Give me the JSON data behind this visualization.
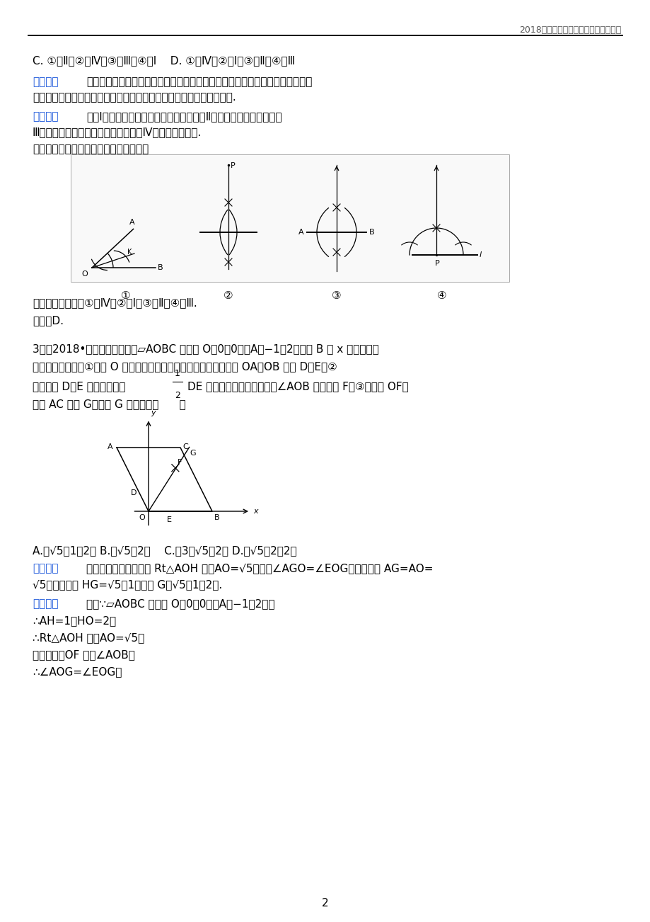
{
  "page_bg": "#ffffff",
  "header_text": "2018年中考数学试题分类汇编考点解析",
  "page_num": "2",
  "line1_c": "C. ①－Ⅱ，②－Ⅳ，③－Ⅲ，④－Ⅰ    D. ①－Ⅳ，②－Ⅰ，③－Ⅱ，④－Ⅲ",
  "fenxi_text": "分别利用过直线外一点作这条直线的垂线作法以及线段垂直平分线的作法和过直",
  "fenxi_text2": "线上一点作这条直线的垂线、角平分线的作法分别得出符合题意的答案.",
  "jiejie_text": "解：Ⅰ、过直线外一点作这条直线的垂线；Ⅱ、作线段的垂直平分线；",
  "jiejie_text2": "Ⅲ、过直线上一点作这条直线的垂线；Ⅳ、作角的平分线.",
  "note1": "如图是按上述要求排乱顺序的尺规作图：",
  "result_text": "则正确的配对是：①－Ⅳ，②－Ⅰ，③－Ⅱ，④－Ⅲ.",
  "choice_text": "故选：D.",
  "q3_head": "3．（2018•河南）如图，已知▱AOBC 的顶点 O（0，0），A（−1，2），点 B 在 x 轴正半轴上",
  "q3_line1": "按以下步骤作图：①以点 O 为圆心，适当长度为半径作弧，分别交边 OA，OB 于点 D，E；②",
  "q3_line2a": "分别以点 D，E 为圆心，大于",
  "q3_line2b": "DE 的长为半径作弧，两弧在∠AOB 内交于点 F；③作射线 OF，",
  "q3_line3": "交边 AC 于点 G，则点 G 的坐标为（      ）",
  "choices_line": "A.（√5－1，2） B.（√5，2）    C.（3－√5，2） D.（√5－2，2）",
  "fenxi2_text": "依据勾股定理即可得到 Rt△AOH 中，AO=√5，依据∠AGO=∠EOG，即可得到 AG=AO=",
  "fenxi2_text2": "√5，进而得出 HG=√5－1，可得 G（√5－1，2）.",
  "jiejie2_text": "解：∵▱AOBC 的顶点 O（0，0），A（−1，2），",
  "jiejie2_text2": "∴AH=1，HO=2，",
  "jiejie2_text3": "∴Rt△AOH 中，AO=√5，",
  "jiejie2_text4": "由题可得，OF 平分∠AOB，",
  "jiejie2_text5": "∴∠AOG=∠EOG，"
}
